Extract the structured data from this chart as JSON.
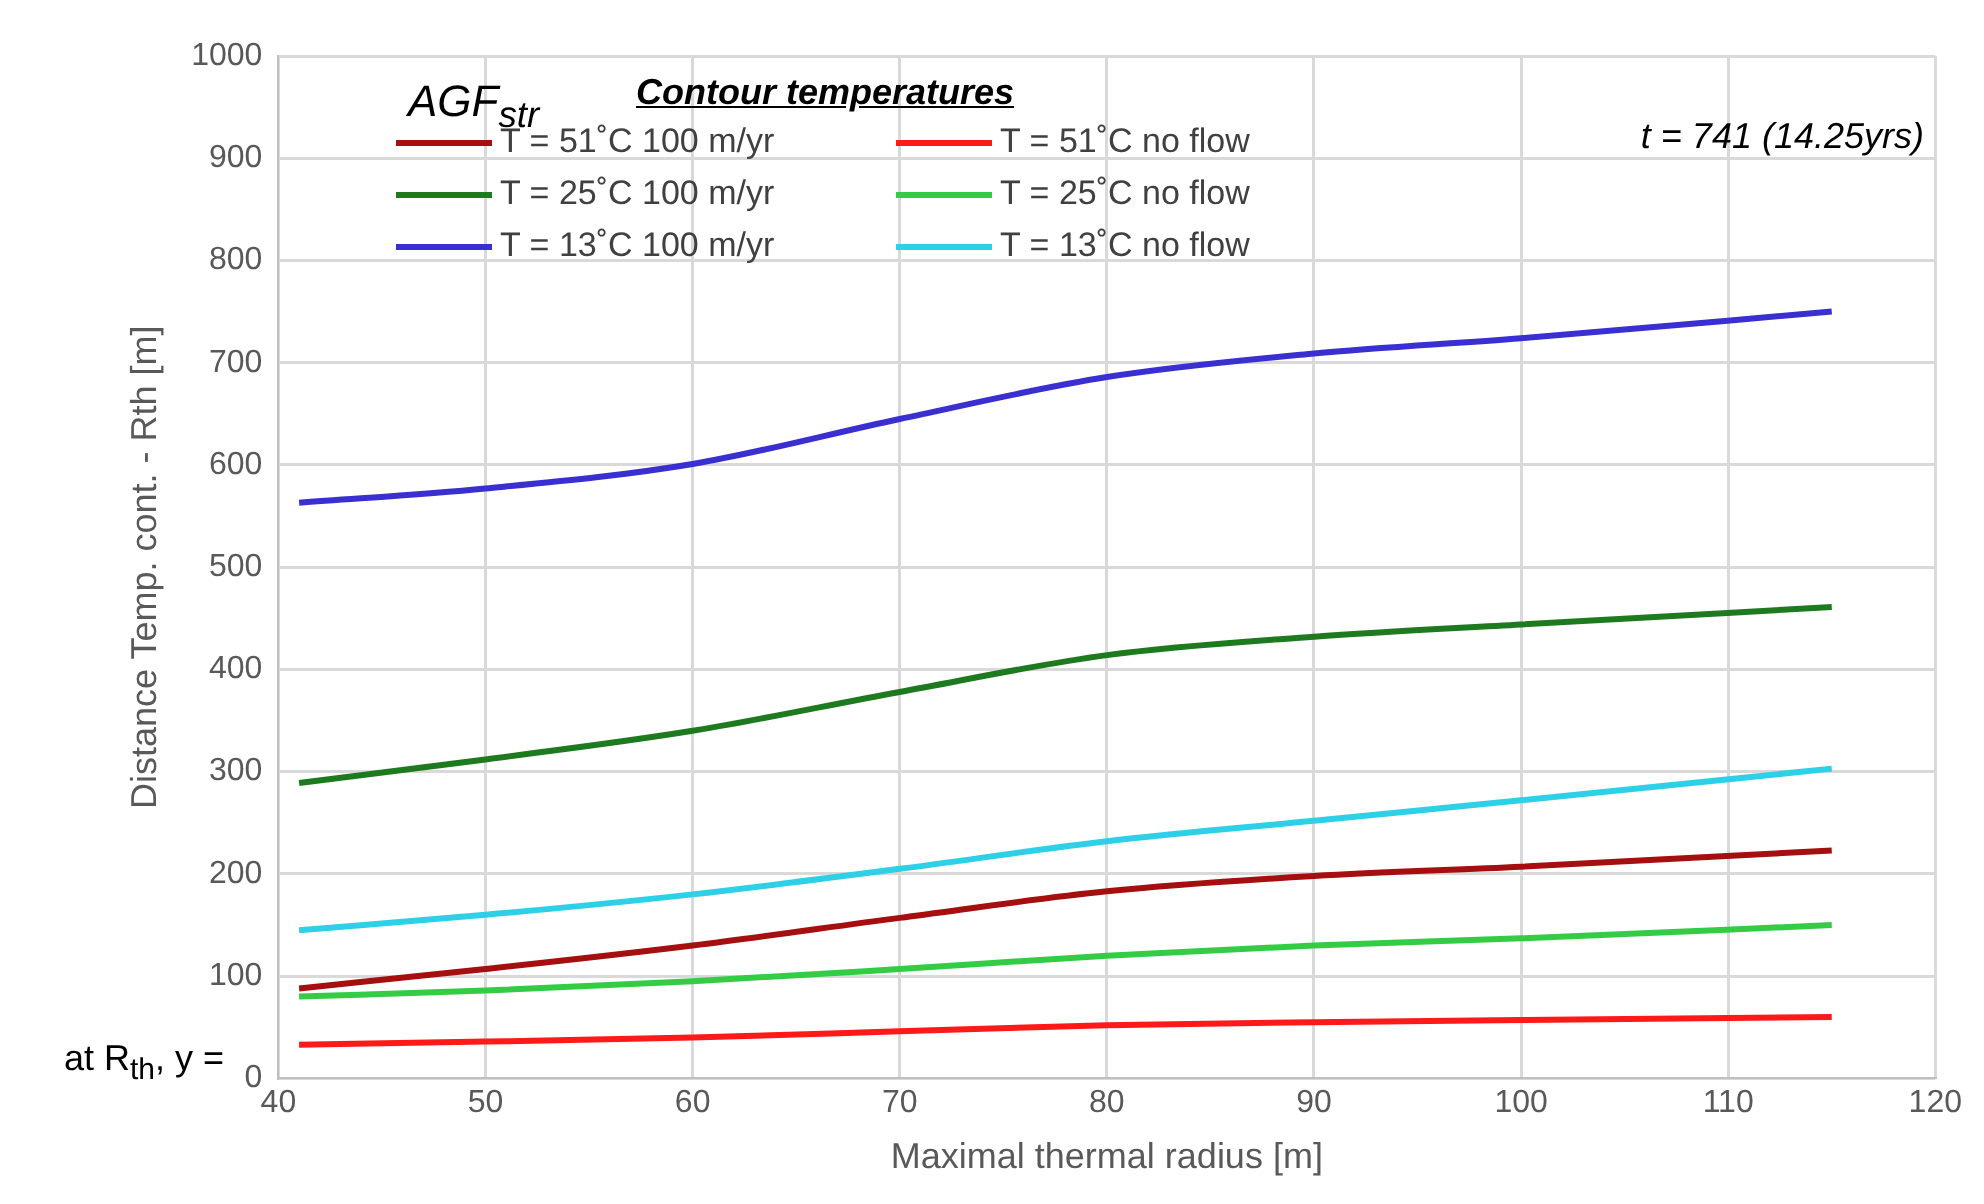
{
  "chart_data": {
    "type": "line",
    "xlabel": "Maximal thermal radius [m]",
    "ylabel": "Distance Temp. cont. - Rth [m]",
    "legend_title": "Contour temperatures",
    "legend": "top left",
    "grid": true,
    "marker": "none",
    "line_style": "solid",
    "annotations": [
      "AGF$_{str}$",
      "t = 741 (14.25yrs)",
      "at R$_{th}$, y ="
    ],
    "xlim": [
      40,
      120
    ],
    "xticks": [
      40,
      50,
      60,
      70,
      80,
      90,
      100,
      110,
      120
    ],
    "ylim": [
      0,
      1000
    ],
    "yticks": [
      0,
      100,
      200,
      300,
      400,
      500,
      600,
      700,
      800,
      900,
      1000
    ],
    "x": [
      41,
      50,
      60,
      70,
      80,
      90,
      100,
      115
    ],
    "series": [
      {
        "name": "T = 51˚C 100 m/yr",
        "color": "#a50f0f",
        "values": [
          88,
          107,
          130,
          157,
          183,
          198,
          207,
          223
        ]
      },
      {
        "name": "T = 51˚C no flow",
        "color": "#ff1a1a",
        "values": [
          33,
          36,
          40,
          46,
          52,
          55,
          57,
          60
        ]
      },
      {
        "name": "T = 25˚C 100 m/yr",
        "color": "#1e7a1e",
        "values": [
          289,
          312,
          340,
          378,
          414,
          432,
          444,
          461
        ]
      },
      {
        "name": "T = 25˚C no flow",
        "color": "#33cc44",
        "values": [
          80,
          86,
          95,
          107,
          120,
          130,
          137,
          150
        ]
      },
      {
        "name": "T = 13˚C 100 m/yr",
        "color": "#3a2fd0",
        "values": [
          563,
          577,
          601,
          645,
          686,
          709,
          724,
          750
        ]
      },
      {
        "name": "T = 13˚C no flow",
        "color": "#2ed0e8",
        "values": [
          145,
          160,
          180,
          205,
          232,
          252,
          272,
          303
        ]
      }
    ]
  }
}
